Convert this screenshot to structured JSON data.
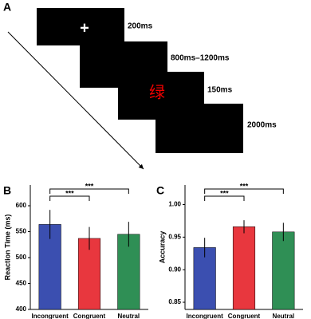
{
  "panel_a": {
    "label": "A",
    "fixation": "+",
    "stimulus": "绿",
    "durations": [
      "200ms",
      "800ms–1200ms",
      "150ms",
      "2000ms"
    ]
  },
  "chart_data": [
    {
      "type": "bar",
      "panel_label": "B",
      "ylabel": "Reaction Time (ms)",
      "categories": [
        "Incongruent",
        "Congruent",
        "Neutral"
      ],
      "values": [
        564,
        537,
        545
      ],
      "errors": [
        28,
        22,
        24
      ],
      "colors": [
        "#3b4fb0",
        "#e8373e",
        "#2f8f55"
      ],
      "ylim": [
        400,
        640
      ],
      "yticks": [
        400,
        450,
        500,
        550,
        600
      ],
      "annotations": [
        "***",
        "***"
      ]
    },
    {
      "type": "bar",
      "panel_label": "C",
      "ylabel": "Accuracy",
      "categories": [
        "Incongruent",
        "Congruent",
        "Neutral"
      ],
      "values": [
        0.934,
        0.966,
        0.958
      ],
      "errors": [
        0.015,
        0.01,
        0.014
      ],
      "colors": [
        "#3b4fb0",
        "#e8373e",
        "#2f8f55"
      ],
      "ylim": [
        0.839,
        1.03
      ],
      "yticks": [
        0.85,
        {
          "value": 0.9,
          "label": "0.90"
        },
        0.95,
        {
          "value": 1,
          "label": "1.00"
        }
      ],
      "annotations": [
        "***",
        "***"
      ]
    }
  ]
}
